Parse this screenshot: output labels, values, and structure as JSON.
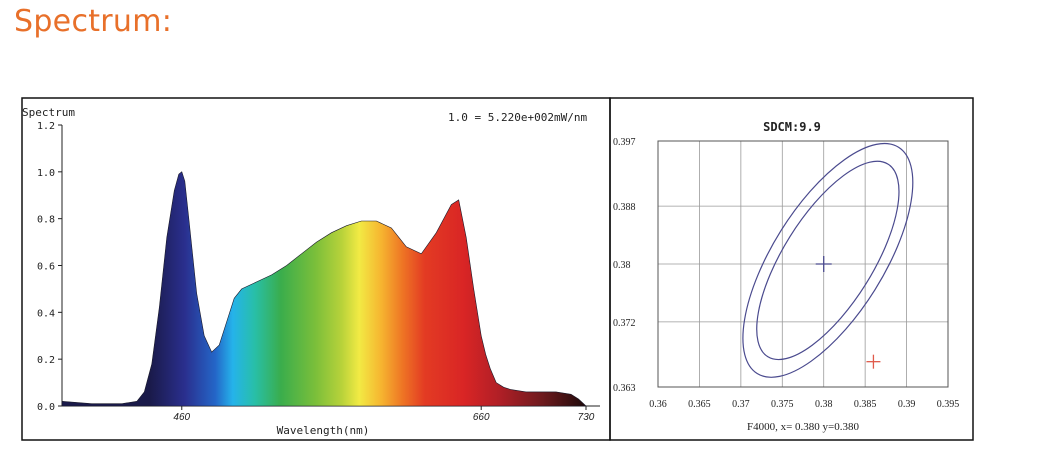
{
  "page": {
    "heading": "Spectrum:"
  },
  "chart_data": [
    {
      "type": "area",
      "title": "Spectrum",
      "annotation": "1.0 = 5.220e+002mW/nm",
      "xlabel": "Wavelength(nm)",
      "ylabel": "",
      "xlim": [
        380,
        730
      ],
      "ylim": [
        0,
        1.2
      ],
      "x_tick_labels": [
        "460",
        "660",
        "730"
      ],
      "x_ticks": [
        460,
        660,
        730
      ],
      "y_tick_labels": [
        "0.0",
        "0.2",
        "0.4",
        "0.6",
        "0.8",
        "1.0",
        "1.2"
      ],
      "y_ticks": [
        0.0,
        0.2,
        0.4,
        0.6,
        0.8,
        1.0,
        1.2
      ],
      "grid": false,
      "fill": "spectral-gradient",
      "series": [
        {
          "x": [
            380,
            400,
            420,
            430,
            435,
            440,
            445,
            450,
            455,
            458,
            460,
            462,
            465,
            470,
            475,
            480,
            485,
            490,
            495,
            500,
            510,
            520,
            530,
            540,
            550,
            560,
            570,
            580,
            590,
            600,
            605,
            610,
            620,
            630,
            640,
            645,
            650,
            655,
            658,
            660,
            663,
            666,
            670,
            675,
            680,
            690,
            700,
            710,
            720,
            725,
            730
          ],
          "values": [
            0.02,
            0.01,
            0.01,
            0.02,
            0.06,
            0.18,
            0.42,
            0.72,
            0.92,
            0.99,
            1.0,
            0.96,
            0.78,
            0.48,
            0.3,
            0.23,
            0.26,
            0.36,
            0.46,
            0.5,
            0.53,
            0.56,
            0.6,
            0.65,
            0.7,
            0.74,
            0.77,
            0.79,
            0.79,
            0.76,
            0.72,
            0.68,
            0.65,
            0.74,
            0.86,
            0.88,
            0.72,
            0.5,
            0.38,
            0.3,
            0.22,
            0.16,
            0.1,
            0.08,
            0.07,
            0.06,
            0.06,
            0.06,
            0.05,
            0.03,
            0.0
          ]
        }
      ]
    },
    {
      "type": "scatter",
      "title": "SDCM:9.9",
      "caption": "F4000,  x= 0.380 y=0.380",
      "xlim": [
        0.36,
        0.395
      ],
      "ylim": [
        0.363,
        0.397
      ],
      "x_tick_labels": [
        "0.36",
        "0.365",
        "0.37",
        "0.375",
        "0.38",
        "0.385",
        "0.39",
        "0.395"
      ],
      "x_ticks": [
        0.36,
        0.365,
        0.37,
        0.375,
        0.38,
        0.385,
        0.39,
        0.395
      ],
      "y_tick_labels": [
        "0.363",
        "0.372",
        "0.38",
        "0.388",
        "0.397"
      ],
      "y_ticks": [
        0.363,
        0.372,
        0.38,
        0.388,
        0.397
      ],
      "grid": true,
      "target_point": {
        "x": 0.38,
        "y": 0.38
      },
      "measured_point": {
        "x": 0.386,
        "y": 0.3665
      },
      "ellipses": [
        {
          "cx": 0.3805,
          "cy": 0.3805,
          "rx_len": 0.0137,
          "ry_len": 0.0054,
          "angle_deg": -58
        },
        {
          "cx": 0.3805,
          "cy": 0.3805,
          "rx_len": 0.0161,
          "ry_len": 0.0067,
          "angle_deg": -58
        }
      ],
      "colors": {
        "ellipse": "#4a4a8e",
        "target": "#4a4a8e",
        "measured": "#e05a4a"
      }
    }
  ]
}
